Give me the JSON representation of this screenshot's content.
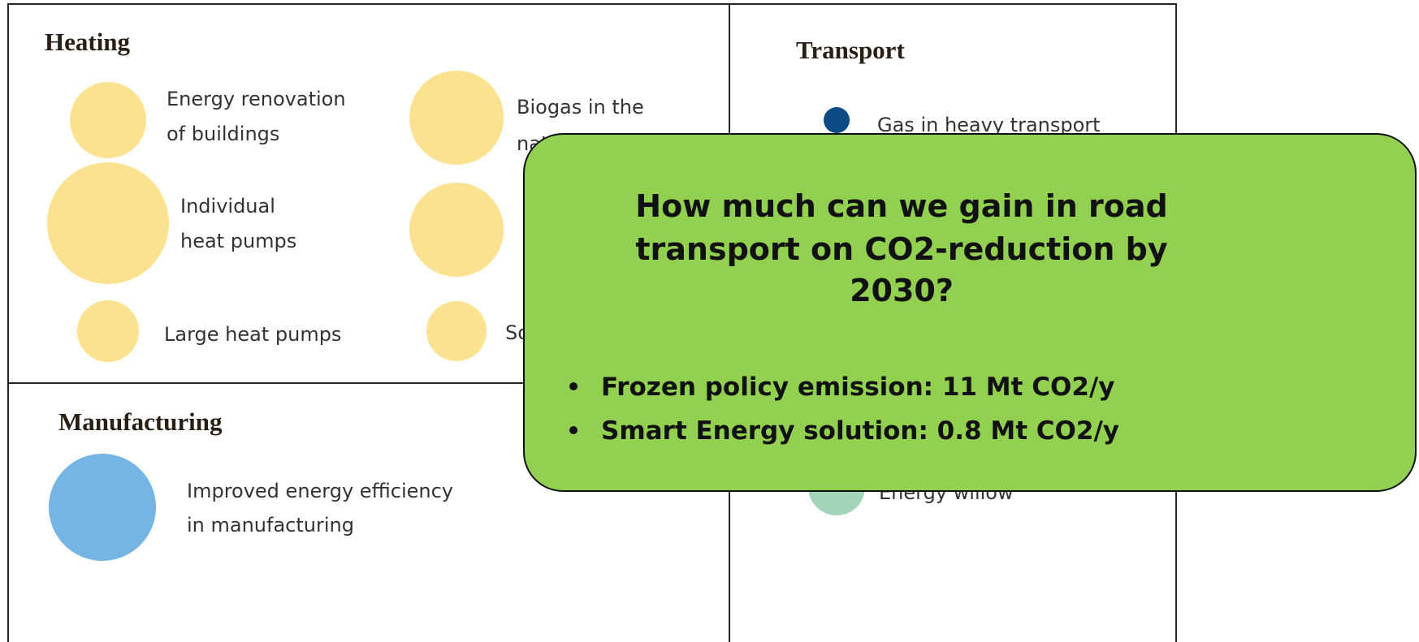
{
  "sections": [
    {
      "title": "Heating",
      "items": [
        {
          "lines": [
            "Energy renovation",
            "of buildings"
          ]
        },
        {
          "lines": [
            "Individual",
            "heat pumps"
          ]
        },
        {
          "lines": [
            "Large heat pumps"
          ]
        },
        {
          "lines": [
            "Biogas in the",
            "nat"
          ]
        },
        {
          "lines": []
        },
        {
          "lines": [
            "So"
          ]
        }
      ]
    },
    {
      "title": "Transport",
      "items": [
        {
          "lines": [
            "Gas in heavy transport"
          ]
        },
        {
          "lines": [
            "Energy willow"
          ]
        }
      ]
    },
    {
      "title": "Manufacturing",
      "items": [
        {
          "lines": [
            "Improved energy efficiency",
            "in manufacturing"
          ]
        }
      ]
    }
  ],
  "callout": {
    "question": [
      "How much can we gain in road",
      "transport on CO2-reduction by",
      "2030?"
    ],
    "bullets": [
      "Frozen policy emission: 11 Mt CO2/y",
      "Smart Energy solution: 0.8 Mt CO2/y"
    ]
  }
}
